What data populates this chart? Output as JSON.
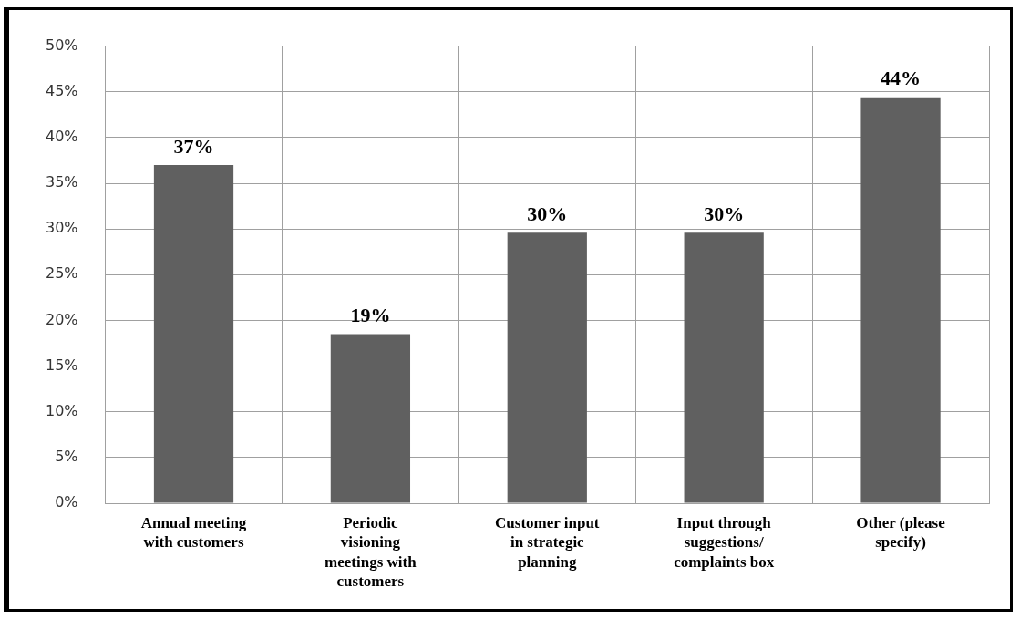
{
  "chart_data": {
    "type": "bar",
    "categories": [
      "Annual meeting with customers",
      "Periodic visioning meetings with customers",
      "Customer input in strategic planning",
      "Input through suggestions/ complaints box",
      "Other (please specify)"
    ],
    "values": [
      37,
      18.5,
      29.6,
      29.6,
      44.4
    ],
    "value_labels": [
      "37%",
      "19%",
      "30%",
      "30%",
      "44%"
    ],
    "color": "#606060",
    "ylim": [
      0,
      50
    ],
    "yticks": [
      {
        "value": 0,
        "label": "0%"
      },
      {
        "value": 5,
        "label": "5%"
      },
      {
        "value": 10,
        "label": "10%"
      },
      {
        "value": 15,
        "label": "15%"
      },
      {
        "value": 20,
        "label": "20%"
      },
      {
        "value": 25,
        "label": "25%"
      },
      {
        "value": 30,
        "label": "30%"
      },
      {
        "value": 35,
        "label": "35%"
      },
      {
        "value": 40,
        "label": "40%"
      },
      {
        "value": 45,
        "label": "45%"
      },
      {
        "value": 50,
        "label": "50%"
      }
    ],
    "grid": true,
    "legend": false
  }
}
